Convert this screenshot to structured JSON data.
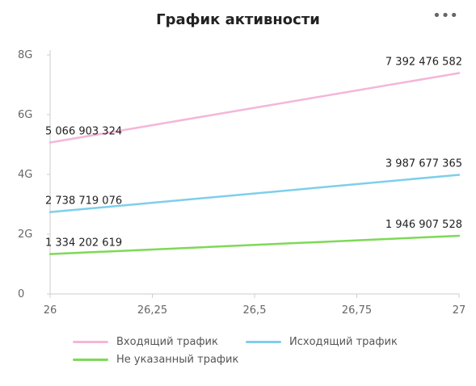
{
  "title": "График активности",
  "menu_icon": "more-dots-icon",
  "chart_data": {
    "type": "line",
    "x": [
      26,
      27
    ],
    "xticks": [
      "26",
      "26,25",
      "26,5",
      "26,75",
      "27"
    ],
    "xtick_values": [
      26,
      26.25,
      26.5,
      26.75,
      27
    ],
    "yticks": [
      "0",
      "2G",
      "4G",
      "6G",
      "8G"
    ],
    "ytick_values": [
      0,
      2000000000,
      4000000000,
      6000000000,
      8000000000
    ],
    "ylim": [
      0,
      8000000000
    ],
    "xlim": [
      26,
      27
    ],
    "grid": false,
    "legend_position": "bottom",
    "series": [
      {
        "name": "Входящий трафик",
        "color": "#f4b6d8",
        "values": [
          5066903324,
          7392476582
        ],
        "labels": [
          "5 066 903 324",
          "7 392 476 582"
        ]
      },
      {
        "name": "Исходящий трафик",
        "color": "#7ecfea",
        "values": [
          2738719076,
          3987677365
        ],
        "labels": [
          "2 738 719 076",
          "3 987 677 365"
        ]
      },
      {
        "name": "Не указанный трафик",
        "color": "#7ed957",
        "values": [
          1334202619,
          1946907528
        ],
        "labels": [
          "1 334 202 619",
          "1 946 907 528"
        ]
      }
    ]
  }
}
